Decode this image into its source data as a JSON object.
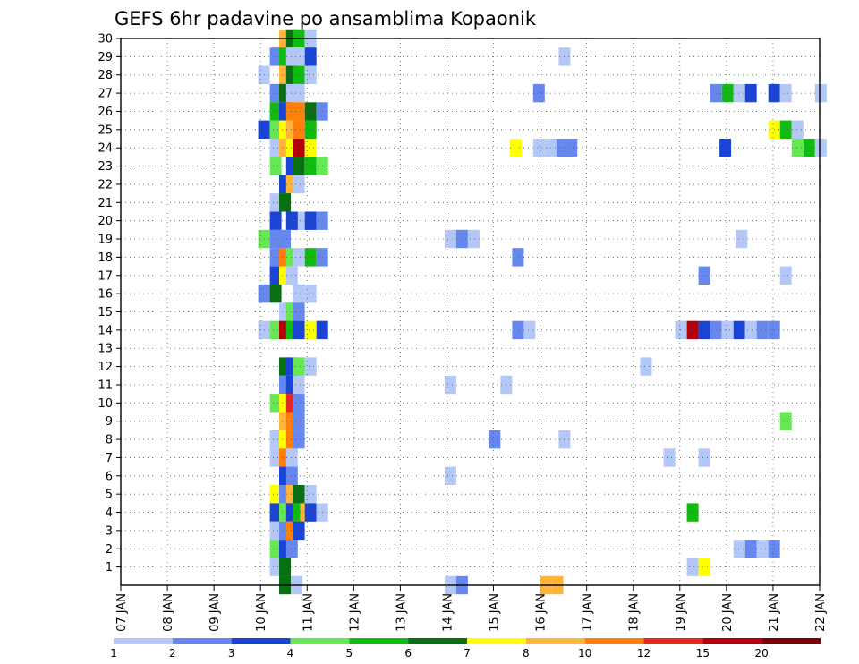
{
  "chart_data": {
    "type": "heatmap",
    "title": "GEFS 6hr padavine po ansamblima Kopaonik",
    "x_tick_labels": [
      "07 JAN",
      "08 JAN",
      "09 JAN",
      "10 JAN",
      "11 JAN",
      "12 JAN",
      "13 JAN",
      "14 JAN",
      "15 JAN",
      "16 JAN",
      "17 JAN",
      "18 JAN",
      "19 JAN",
      "20 JAN",
      "21 JAN",
      "22 JAN"
    ],
    "x_range_days": [
      0,
      15
    ],
    "y_range": [
      0,
      30
    ],
    "y_tick_labels": [
      "1",
      "2",
      "3",
      "4",
      "5",
      "6",
      "7",
      "8",
      "9",
      "10",
      "11",
      "12",
      "13",
      "14",
      "15",
      "16",
      "17",
      "18",
      "19",
      "20",
      "21",
      "22",
      "23",
      "24",
      "25",
      "26",
      "27",
      "28",
      "29",
      "30"
    ],
    "grid": true,
    "color_scale": {
      "colors": [
        "#b4c8f8",
        "#6688ee",
        "#1a44d6",
        "#66e855",
        "#11bb11",
        "#0a6e12",
        "#ffff00",
        "#ffb43c",
        "#ff7f0a",
        "#e6281e",
        "#b4000a",
        "#780008"
      ],
      "labels": [
        "1",
        "2",
        "3",
        "4",
        "5",
        "6",
        "7",
        "8",
        "10",
        "12",
        "15",
        "20"
      ]
    },
    "cells": [
      {
        "ens": 30,
        "d": 3.4,
        "c": 7
      },
      {
        "ens": 30,
        "d": 3.55,
        "c": 5
      },
      {
        "ens": 30,
        "d": 3.7,
        "c": 4
      },
      {
        "ens": 30,
        "d": 3.95,
        "c": 0
      },
      {
        "ens": 29,
        "d": 3.2,
        "c": 1
      },
      {
        "ens": 29,
        "d": 3.4,
        "c": 4
      },
      {
        "ens": 29,
        "d": 3.55,
        "c": 0
      },
      {
        "ens": 29,
        "d": 3.7,
        "c": 0
      },
      {
        "ens": 29,
        "d": 3.95,
        "c": 2
      },
      {
        "ens": 29,
        "d": 9.4,
        "c": 0
      },
      {
        "ens": 28,
        "d": 2.95,
        "c": 0
      },
      {
        "ens": 28,
        "d": 3.4,
        "c": 7
      },
      {
        "ens": 28,
        "d": 3.55,
        "c": 5
      },
      {
        "ens": 28,
        "d": 3.7,
        "c": 4
      },
      {
        "ens": 28,
        "d": 3.95,
        "c": 0
      },
      {
        "ens": 27,
        "d": 3.2,
        "c": 1
      },
      {
        "ens": 27,
        "d": 3.4,
        "c": 5
      },
      {
        "ens": 27,
        "d": 3.55,
        "c": 0
      },
      {
        "ens": 27,
        "d": 3.7,
        "c": 0
      },
      {
        "ens": 27,
        "d": 8.85,
        "c": 1
      },
      {
        "ens": 27,
        "d": 12.65,
        "c": 1
      },
      {
        "ens": 27,
        "d": 12.9,
        "c": 4
      },
      {
        "ens": 27,
        "d": 13.15,
        "c": 0
      },
      {
        "ens": 27,
        "d": 13.4,
        "c": 2
      },
      {
        "ens": 27,
        "d": 13.9,
        "c": 2
      },
      {
        "ens": 27,
        "d": 14.15,
        "c": 0
      },
      {
        "ens": 27,
        "d": 14.9,
        "c": 0
      },
      {
        "ens": 26,
        "d": 3.2,
        "c": 4
      },
      {
        "ens": 26,
        "d": 3.4,
        "c": 2
      },
      {
        "ens": 26,
        "d": 3.55,
        "c": 8
      },
      {
        "ens": 26,
        "d": 3.7,
        "c": 8
      },
      {
        "ens": 26,
        "d": 3.95,
        "c": 5
      },
      {
        "ens": 26,
        "d": 4.2,
        "c": 1
      },
      {
        "ens": 25,
        "d": 2.95,
        "c": 2
      },
      {
        "ens": 25,
        "d": 3.2,
        "c": 3
      },
      {
        "ens": 25,
        "d": 3.4,
        "c": 6
      },
      {
        "ens": 25,
        "d": 3.55,
        "c": 7
      },
      {
        "ens": 25,
        "d": 3.7,
        "c": 8
      },
      {
        "ens": 25,
        "d": 3.95,
        "c": 4
      },
      {
        "ens": 25,
        "d": 13.9,
        "c": 6
      },
      {
        "ens": 25,
        "d": 14.15,
        "c": 4
      },
      {
        "ens": 25,
        "d": 14.4,
        "c": 0
      },
      {
        "ens": 24,
        "d": 3.2,
        "c": 0
      },
      {
        "ens": 24,
        "d": 3.4,
        "c": 7
      },
      {
        "ens": 24,
        "d": 3.55,
        "c": 6
      },
      {
        "ens": 24,
        "d": 3.7,
        "c": 10
      },
      {
        "ens": 24,
        "d": 3.95,
        "c": 6
      },
      {
        "ens": 24,
        "d": 8.35,
        "c": 6
      },
      {
        "ens": 24,
        "d": 8.85,
        "c": 0
      },
      {
        "ens": 24,
        "d": 9.1,
        "c": 0
      },
      {
        "ens": 24,
        "d": 9.35,
        "c": 1
      },
      {
        "ens": 24,
        "d": 9.55,
        "c": 1
      },
      {
        "ens": 24,
        "d": 12.85,
        "c": 2
      },
      {
        "ens": 24,
        "d": 14.4,
        "c": 3
      },
      {
        "ens": 24,
        "d": 14.65,
        "c": 4
      },
      {
        "ens": 24,
        "d": 14.9,
        "c": 0
      },
      {
        "ens": 23,
        "d": 3.2,
        "c": 3
      },
      {
        "ens": 23,
        "d": 3.55,
        "c": 2
      },
      {
        "ens": 23,
        "d": 3.7,
        "c": 5
      },
      {
        "ens": 23,
        "d": 3.95,
        "c": 4
      },
      {
        "ens": 23,
        "d": 4.2,
        "c": 3
      },
      {
        "ens": 22,
        "d": 3.4,
        "c": 2
      },
      {
        "ens": 22,
        "d": 3.55,
        "c": 7
      },
      {
        "ens": 22,
        "d": 3.7,
        "c": 0
      },
      {
        "ens": 21,
        "d": 3.2,
        "c": 0
      },
      {
        "ens": 21,
        "d": 3.4,
        "c": 5
      },
      {
        "ens": 20,
        "d": 3.2,
        "c": 2
      },
      {
        "ens": 20,
        "d": 3.7,
        "c": 0
      },
      {
        "ens": 20,
        "d": 3.95,
        "c": 2
      },
      {
        "ens": 20,
        "d": 4.2,
        "c": 1
      },
      {
        "ens": 20,
        "d": 3.55,
        "c": 2
      },
      {
        "ens": 19,
        "d": 2.95,
        "c": 3
      },
      {
        "ens": 19,
        "d": 3.2,
        "c": 1
      },
      {
        "ens": 19,
        "d": 3.4,
        "c": 1
      },
      {
        "ens": 19,
        "d": 6.95,
        "c": 0
      },
      {
        "ens": 19,
        "d": 7.2,
        "c": 1
      },
      {
        "ens": 19,
        "d": 7.45,
        "c": 0
      },
      {
        "ens": 19,
        "d": 13.2,
        "c": 0
      },
      {
        "ens": 18,
        "d": 3.2,
        "c": 1
      },
      {
        "ens": 18,
        "d": 3.4,
        "c": 8
      },
      {
        "ens": 18,
        "d": 3.55,
        "c": 3
      },
      {
        "ens": 18,
        "d": 3.7,
        "c": 0
      },
      {
        "ens": 18,
        "d": 3.95,
        "c": 4
      },
      {
        "ens": 18,
        "d": 4.2,
        "c": 1
      },
      {
        "ens": 18,
        "d": 8.4,
        "c": 1
      },
      {
        "ens": 17,
        "d": 3.2,
        "c": 2
      },
      {
        "ens": 17,
        "d": 3.4,
        "c": 6
      },
      {
        "ens": 17,
        "d": 3.55,
        "c": 0
      },
      {
        "ens": 17,
        "d": 12.4,
        "c": 1
      },
      {
        "ens": 17,
        "d": 14.15,
        "c": 0
      },
      {
        "ens": 16,
        "d": 2.95,
        "c": 1
      },
      {
        "ens": 16,
        "d": 3.2,
        "c": 5
      },
      {
        "ens": 16,
        "d": 3.7,
        "c": 0
      },
      {
        "ens": 16,
        "d": 3.95,
        "c": 0
      },
      {
        "ens": 15,
        "d": 3.4,
        "c": 0
      },
      {
        "ens": 15,
        "d": 3.55,
        "c": 3
      },
      {
        "ens": 15,
        "d": 3.7,
        "c": 1
      },
      {
        "ens": 14,
        "d": 2.95,
        "c": 0
      },
      {
        "ens": 14,
        "d": 3.2,
        "c": 3
      },
      {
        "ens": 14,
        "d": 3.4,
        "c": 10
      },
      {
        "ens": 14,
        "d": 3.55,
        "c": 4
      },
      {
        "ens": 14,
        "d": 3.7,
        "c": 2
      },
      {
        "ens": 14,
        "d": 3.95,
        "c": 6
      },
      {
        "ens": 14,
        "d": 4.2,
        "c": 2
      },
      {
        "ens": 14,
        "d": 8.4,
        "c": 1
      },
      {
        "ens": 14,
        "d": 8.65,
        "c": 0
      },
      {
        "ens": 14,
        "d": 11.9,
        "c": 0
      },
      {
        "ens": 14,
        "d": 12.15,
        "c": 10
      },
      {
        "ens": 14,
        "d": 12.4,
        "c": 2
      },
      {
        "ens": 14,
        "d": 12.65,
        "c": 1
      },
      {
        "ens": 14,
        "d": 12.9,
        "c": 0
      },
      {
        "ens": 14,
        "d": 13.15,
        "c": 2
      },
      {
        "ens": 14,
        "d": 13.4,
        "c": 0
      },
      {
        "ens": 14,
        "d": 13.65,
        "c": 1
      },
      {
        "ens": 14,
        "d": 13.9,
        "c": 1
      },
      {
        "ens": 12,
        "d": 3.4,
        "c": 5
      },
      {
        "ens": 12,
        "d": 3.55,
        "c": 2
      },
      {
        "ens": 12,
        "d": 3.7,
        "c": 3
      },
      {
        "ens": 12,
        "d": 3.95,
        "c": 0
      },
      {
        "ens": 12,
        "d": 11.15,
        "c": 0
      },
      {
        "ens": 11,
        "d": 3.4,
        "c": 1
      },
      {
        "ens": 11,
        "d": 3.55,
        "c": 2
      },
      {
        "ens": 11,
        "d": 3.7,
        "c": 0
      },
      {
        "ens": 11,
        "d": 6.95,
        "c": 0
      },
      {
        "ens": 11,
        "d": 8.15,
        "c": 0
      },
      {
        "ens": 10,
        "d": 3.2,
        "c": 3
      },
      {
        "ens": 10,
        "d": 3.4,
        "c": 6
      },
      {
        "ens": 10,
        "d": 3.55,
        "c": 9
      },
      {
        "ens": 10,
        "d": 3.7,
        "c": 1
      },
      {
        "ens": 9,
        "d": 3.4,
        "c": 7
      },
      {
        "ens": 9,
        "d": 3.55,
        "c": 8
      },
      {
        "ens": 9,
        "d": 3.7,
        "c": 1
      },
      {
        "ens": 9,
        "d": 14.15,
        "c": 3
      },
      {
        "ens": 8,
        "d": 3.2,
        "c": 0
      },
      {
        "ens": 8,
        "d": 3.4,
        "c": 6
      },
      {
        "ens": 8,
        "d": 3.55,
        "c": 8
      },
      {
        "ens": 8,
        "d": 3.7,
        "c": 1
      },
      {
        "ens": 8,
        "d": 7.9,
        "c": 1
      },
      {
        "ens": 8,
        "d": 9.4,
        "c": 0
      },
      {
        "ens": 7,
        "d": 3.2,
        "c": 0
      },
      {
        "ens": 7,
        "d": 3.4,
        "c": 8
      },
      {
        "ens": 7,
        "d": 3.55,
        "c": 0
      },
      {
        "ens": 7,
        "d": 11.65,
        "c": 0
      },
      {
        "ens": 7,
        "d": 12.4,
        "c": 0
      },
      {
        "ens": 6,
        "d": 3.4,
        "c": 2
      },
      {
        "ens": 6,
        "d": 3.55,
        "c": 1
      },
      {
        "ens": 6,
        "d": 6.95,
        "c": 0
      },
      {
        "ens": 5,
        "d": 3.2,
        "c": 6
      },
      {
        "ens": 5,
        "d": 3.4,
        "c": 1
      },
      {
        "ens": 5,
        "d": 3.55,
        "c": 7
      },
      {
        "ens": 5,
        "d": 3.7,
        "c": 5
      },
      {
        "ens": 5,
        "d": 3.95,
        "c": 0
      },
      {
        "ens": 4,
        "d": 3.2,
        "c": 2
      },
      {
        "ens": 4,
        "d": 3.4,
        "c": 3
      },
      {
        "ens": 4,
        "d": 3.55,
        "c": 2
      },
      {
        "ens": 4,
        "d": 3.7,
        "c": 4
      },
      {
        "ens": 4,
        "d": 3.85,
        "c": 7
      },
      {
        "ens": 4,
        "d": 3.95,
        "c": 2
      },
      {
        "ens": 4,
        "d": 4.2,
        "c": 0
      },
      {
        "ens": 4,
        "d": 12.15,
        "c": 4
      },
      {
        "ens": 3,
        "d": 3.2,
        "c": 0
      },
      {
        "ens": 3,
        "d": 3.4,
        "c": 1
      },
      {
        "ens": 3,
        "d": 3.55,
        "c": 8
      },
      {
        "ens": 3,
        "d": 3.7,
        "c": 2
      },
      {
        "ens": 2,
        "d": 3.2,
        "c": 3
      },
      {
        "ens": 2,
        "d": 3.4,
        "c": 2
      },
      {
        "ens": 2,
        "d": 3.55,
        "c": 1
      },
      {
        "ens": 2,
        "d": 13.15,
        "c": 0
      },
      {
        "ens": 2,
        "d": 13.4,
        "c": 1
      },
      {
        "ens": 2,
        "d": 13.65,
        "c": 0
      },
      {
        "ens": 2,
        "d": 13.9,
        "c": 1
      },
      {
        "ens": 1,
        "d": 3.2,
        "c": 0
      },
      {
        "ens": 1,
        "d": 3.4,
        "c": 5
      },
      {
        "ens": 1,
        "d": 12.15,
        "c": 0
      },
      {
        "ens": 1,
        "d": 12.4,
        "c": 6
      },
      {
        "ens": 0,
        "d": 3.4,
        "c": 5
      },
      {
        "ens": 0,
        "d": 3.65,
        "c": 0
      },
      {
        "ens": 0,
        "d": 6.95,
        "c": 0
      },
      {
        "ens": 0,
        "d": 7.2,
        "c": 1
      },
      {
        "ens": 0,
        "d": 9.0,
        "c": 7
      },
      {
        "ens": 0,
        "d": 9.25,
        "c": 7
      }
    ]
  }
}
